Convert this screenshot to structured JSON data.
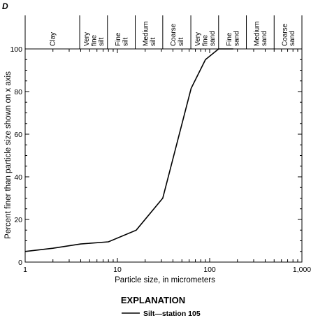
{
  "panel_letter": "D",
  "explanation": {
    "title": "EXPLANATION",
    "entry": "Silt—station 105"
  },
  "chart_data": {
    "type": "line",
    "x_scale": "log",
    "xlim": [
      1,
      1000
    ],
    "ylim": [
      0,
      100
    ],
    "xlabel": "Particle size, in micrometers",
    "ylabel": "Percent finer than particle size shown on x axis",
    "x_ticks": [
      {
        "value": 1,
        "label": "1"
      },
      {
        "value": 10,
        "label": "10"
      },
      {
        "value": 100,
        "label": "100"
      },
      {
        "value": 1000,
        "label": "1,000"
      }
    ],
    "y_ticks": [
      {
        "value": 0,
        "label": "0"
      },
      {
        "value": 20,
        "label": "20"
      },
      {
        "value": 40,
        "label": "40"
      },
      {
        "value": 60,
        "label": "60"
      },
      {
        "value": 80,
        "label": "80"
      },
      {
        "value": 100,
        "label": "100"
      }
    ],
    "grid": false,
    "size_classes": [
      {
        "from": 1,
        "to": 3.9,
        "lines": [
          "Clay"
        ]
      },
      {
        "from": 3.9,
        "to": 7.8,
        "lines": [
          "Very",
          "fine",
          "silt"
        ]
      },
      {
        "from": 7.8,
        "to": 15.6,
        "lines": [
          "Fine",
          "silt"
        ]
      },
      {
        "from": 15.6,
        "to": 31,
        "lines": [
          "Medium",
          "silt"
        ]
      },
      {
        "from": 31,
        "to": 62.5,
        "lines": [
          "Coarse",
          "silt"
        ]
      },
      {
        "from": 62.5,
        "to": 125,
        "lines": [
          "Very",
          "fine",
          "sand"
        ]
      },
      {
        "from": 125,
        "to": 250,
        "lines": [
          "Fine",
          "sand"
        ]
      },
      {
        "from": 250,
        "to": 500,
        "lines": [
          "Medium",
          "sand"
        ]
      },
      {
        "from": 500,
        "to": 1000,
        "lines": [
          "Coarse",
          "sand"
        ]
      }
    ],
    "series": [
      {
        "name": "Silt—station 105",
        "color": "#000000",
        "points": [
          {
            "x": 1,
            "y": 5
          },
          {
            "x": 2,
            "y": 6.5
          },
          {
            "x": 4,
            "y": 8.5
          },
          {
            "x": 8,
            "y": 9.5
          },
          {
            "x": 16,
            "y": 15
          },
          {
            "x": 31,
            "y": 30
          },
          {
            "x": 63,
            "y": 81.5
          },
          {
            "x": 90,
            "y": 95
          },
          {
            "x": 125,
            "y": 100
          },
          {
            "x": 180,
            "y": 100
          }
        ]
      }
    ]
  }
}
